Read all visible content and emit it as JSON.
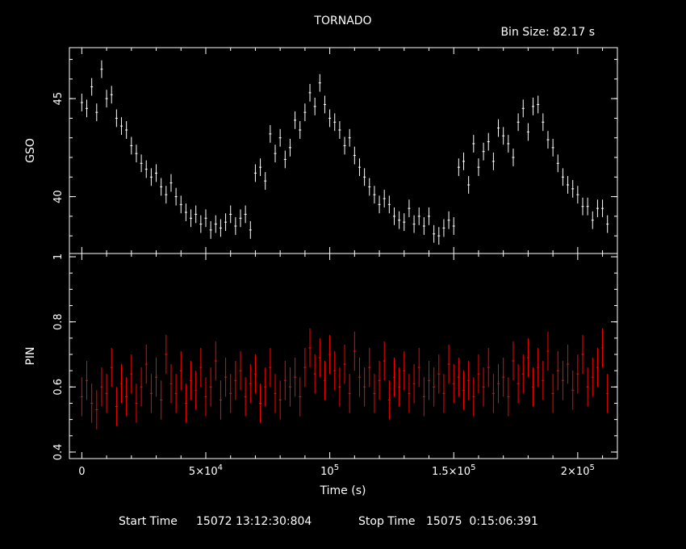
{
  "chart_data": [
    {
      "type": "line",
      "title": "TORNADO",
      "annotation": "Bin Size: 82.17 s",
      "ylabel": "GSO",
      "xlabel": "",
      "xlim": [
        -5000,
        216000
      ],
      "ylim": [
        37.1,
        47.6
      ],
      "grid": false,
      "color": "#ffffff",
      "yticks": [
        {
          "value": 40,
          "label": "40"
        },
        {
          "value": 45,
          "label": "45"
        }
      ],
      "series": [
        {
          "x": [
            0,
            2000,
            4000,
            6000,
            8000,
            10000,
            12000,
            14000,
            16000,
            18000,
            20000,
            22000,
            24000,
            26000,
            28000,
            30000,
            32000,
            34000,
            36000,
            38000,
            40000,
            42000,
            44000,
            46000,
            48000,
            50000,
            52000,
            54000,
            56000,
            58000,
            60000,
            62000,
            64000,
            66000,
            68000,
            70000,
            72000,
            74000,
            76000,
            78000,
            80000,
            82000,
            84000,
            86000,
            88000,
            90000,
            92000,
            94000,
            96000,
            98000,
            100000,
            102000,
            104000,
            106000,
            108000,
            110000,
            112000,
            114000,
            116000,
            118000,
            120000,
            122000,
            124000,
            126000,
            128000,
            130000,
            132000,
            134000,
            136000,
            138000,
            140000,
            142000,
            144000,
            146000,
            148000,
            150000,
            152000,
            154000,
            156000,
            158000,
            160000,
            162000,
            164000,
            166000,
            168000,
            170000,
            172000,
            174000,
            176000,
            178000,
            180000,
            182000,
            184000,
            186000,
            188000,
            190000,
            192000,
            194000,
            196000,
            198000,
            200000,
            202000,
            204000,
            206000,
            208000,
            210000,
            212000
          ],
          "values": [
            44.8,
            44.5,
            45.6,
            44.3,
            46.5,
            45.0,
            45.2,
            44.0,
            43.6,
            43.4,
            42.6,
            42.2,
            41.7,
            41.4,
            41.0,
            41.2,
            40.5,
            40.1,
            40.7,
            40.0,
            39.6,
            39.2,
            38.9,
            39.1,
            38.6,
            38.9,
            38.3,
            38.6,
            38.4,
            38.7,
            39.1,
            38.5,
            38.9,
            39.1,
            38.3,
            41.2,
            41.5,
            40.8,
            43.2,
            42.2,
            43.0,
            41.9,
            42.5,
            43.9,
            43.4,
            44.3,
            45.3,
            44.6,
            45.8,
            44.7,
            44.0,
            43.8,
            43.4,
            42.6,
            43.0,
            42.1,
            41.5,
            41.0,
            40.5,
            40.1,
            39.6,
            39.9,
            39.6,
            39.0,
            38.8,
            38.7,
            39.4,
            38.6,
            39.0,
            38.5,
            39.0,
            38.1,
            38.0,
            38.4,
            38.8,
            38.5,
            41.5,
            41.8,
            40.6,
            42.7,
            41.5,
            42.3,
            42.8,
            41.8,
            43.5,
            43.1,
            42.7,
            42.0,
            43.8,
            44.5,
            43.3,
            44.6,
            44.7,
            43.8,
            42.9,
            42.5,
            41.7,
            41.0,
            40.6,
            40.4,
            40.1,
            39.5,
            39.5,
            38.8,
            39.4,
            39.4,
            38.6
          ]
        }
      ]
    },
    {
      "type": "line",
      "title": "",
      "ylabel": "PIN",
      "xlabel": "Time (s)",
      "xlim": [
        -5000,
        216000
      ],
      "ylim": [
        0.38,
        1.01
      ],
      "grid": false,
      "color": "#ff0000",
      "yticks": [
        {
          "value": 0.4,
          "label": "0.4"
        },
        {
          "value": 0.6,
          "label": "0.6"
        },
        {
          "value": 0.8,
          "label": "0.8"
        },
        {
          "value": 1.0,
          "label": "1"
        }
      ],
      "xticks": [
        {
          "value": 0,
          "base": "0",
          "sup": ""
        },
        {
          "value": 50000,
          "base": "5×10",
          "sup": "4"
        },
        {
          "value": 100000,
          "base": "10",
          "sup": "5"
        },
        {
          "value": 150000,
          "base": "1.5×10",
          "sup": "5"
        },
        {
          "value": 200000,
          "base": "2×10",
          "sup": "5"
        }
      ],
      "series": [
        {
          "x": [
            0,
            2000,
            4000,
            6000,
            8000,
            10000,
            12000,
            14000,
            16000,
            18000,
            20000,
            22000,
            24000,
            26000,
            28000,
            30000,
            32000,
            34000,
            36000,
            38000,
            40000,
            42000,
            44000,
            46000,
            48000,
            50000,
            52000,
            54000,
            56000,
            58000,
            60000,
            62000,
            64000,
            66000,
            68000,
            70000,
            72000,
            74000,
            76000,
            78000,
            80000,
            82000,
            84000,
            86000,
            88000,
            90000,
            92000,
            94000,
            96000,
            98000,
            100000,
            102000,
            104000,
            106000,
            108000,
            110000,
            112000,
            114000,
            116000,
            118000,
            120000,
            122000,
            124000,
            126000,
            128000,
            130000,
            132000,
            134000,
            136000,
            138000,
            140000,
            142000,
            144000,
            146000,
            148000,
            150000,
            152000,
            154000,
            156000,
            158000,
            160000,
            162000,
            164000,
            166000,
            168000,
            170000,
            172000,
            174000,
            176000,
            178000,
            180000,
            182000,
            184000,
            186000,
            188000,
            190000,
            192000,
            194000,
            196000,
            198000,
            200000,
            202000,
            204000,
            206000,
            208000,
            210000,
            212000
          ],
          "values": [
            0.57,
            0.62,
            0.55,
            0.53,
            0.6,
            0.58,
            0.66,
            0.54,
            0.61,
            0.57,
            0.64,
            0.55,
            0.6,
            0.67,
            0.58,
            0.63,
            0.56,
            0.7,
            0.61,
            0.58,
            0.65,
            0.55,
            0.62,
            0.59,
            0.66,
            0.57,
            0.6,
            0.68,
            0.56,
            0.63,
            0.58,
            0.62,
            0.65,
            0.57,
            0.61,
            0.64,
            0.55,
            0.6,
            0.66,
            0.58,
            0.56,
            0.62,
            0.6,
            0.63,
            0.57,
            0.66,
            0.72,
            0.64,
            0.69,
            0.62,
            0.7,
            0.65,
            0.6,
            0.67,
            0.58,
            0.71,
            0.63,
            0.6,
            0.66,
            0.58,
            0.62,
            0.68,
            0.56,
            0.63,
            0.6,
            0.65,
            0.58,
            0.61,
            0.66,
            0.57,
            0.62,
            0.6,
            0.64,
            0.58,
            0.67,
            0.61,
            0.63,
            0.59,
            0.62,
            0.57,
            0.64,
            0.6,
            0.66,
            0.58,
            0.61,
            0.63,
            0.57,
            0.68,
            0.61,
            0.64,
            0.69,
            0.6,
            0.66,
            0.62,
            0.71,
            0.58,
            0.65,
            0.62,
            0.67,
            0.59,
            0.64,
            0.7,
            0.6,
            0.63,
            0.66,
            0.72,
            0.58
          ]
        }
      ]
    }
  ],
  "footer": {
    "start_label": "Start Time",
    "start_value": "15072 13:12:30:804",
    "stop_label": "Stop Time",
    "stop_value": "15075  0:15:06:391"
  }
}
